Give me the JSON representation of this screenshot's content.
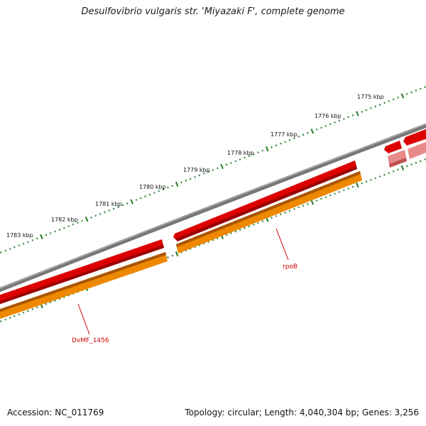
{
  "title": "Desulfovibrio vulgaris str. 'Miyazaki F', complete genome",
  "footer": {
    "accession": "Accession: NC_011769",
    "info": "Topology: circular; Length: 4,040,304 bp; Genes: 3,256"
  },
  "map": {
    "colors": {
      "backbone": "#777777",
      "gene_red": "#dd0000",
      "gene_orange": "#ee8800",
      "gene_faded": "#e88a8a",
      "tick": "#1e7a1e",
      "label": "#cc0000"
    },
    "kbp_labels": [
      {
        "text": "1775 kbp",
        "icon": "kbp-tick"
      },
      {
        "text": "1776 kbp",
        "icon": "kbp-tick"
      },
      {
        "text": "1777 kbp",
        "icon": "kbp-tick"
      },
      {
        "text": "1778 kbp",
        "icon": "kbp-tick"
      },
      {
        "text": "1779 kbp",
        "icon": "kbp-tick"
      },
      {
        "text": "1780 kbp",
        "icon": "kbp-tick"
      },
      {
        "text": "1781 kbp",
        "icon": "kbp-tick"
      },
      {
        "text": "1782 kbp",
        "icon": "kbp-tick"
      },
      {
        "text": "1783 kbp",
        "icon": "kbp-tick"
      }
    ],
    "gene_labels": [
      {
        "text": "rpoB"
      },
      {
        "text": "DvMF_1456"
      }
    ]
  }
}
